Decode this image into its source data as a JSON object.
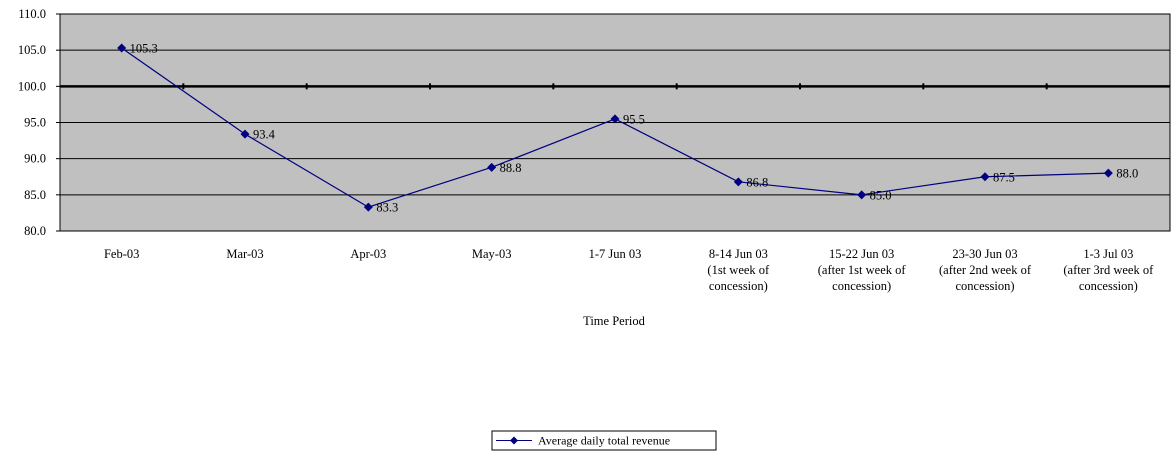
{
  "chart_data": {
    "type": "line",
    "title": "",
    "xlabel": "Time Period",
    "ylabel": "",
    "ylim": [
      80.0,
      110.0
    ],
    "y_ticks": [
      "80.0",
      "85.0",
      "90.0",
      "95.0",
      "100.0",
      "105.0",
      "110.0"
    ],
    "reference_line": 100.0,
    "grid": true,
    "legend_position": "bottom-center",
    "categories": [
      [
        "Feb-03"
      ],
      [
        "Mar-03"
      ],
      [
        "Apr-03"
      ],
      [
        "May-03"
      ],
      [
        "1-7 Jun 03"
      ],
      [
        "8-14 Jun 03",
        "(1st week of",
        "concession)"
      ],
      [
        "15-22 Jun 03",
        "(after 1st week of",
        "concession)"
      ],
      [
        "23-30 Jun 03",
        "(after 2nd week of",
        "concession)"
      ],
      [
        "1-3 Jul 03",
        "(after 3rd week of",
        "concession)"
      ]
    ],
    "series": [
      {
        "name": "Average daily total revenue",
        "values": [
          105.3,
          93.4,
          83.3,
          88.8,
          95.5,
          86.8,
          85.0,
          87.5,
          88.0
        ],
        "labels": [
          "105.3",
          "93.4",
          "83.3",
          "88.8",
          "95.5",
          "86.8",
          "85.0",
          "87.5",
          "88.0"
        ],
        "color": "#000080"
      }
    ],
    "colors": {
      "plot_background": "#c0c0c0",
      "gridline": "#000000",
      "reference_line": "#000000"
    }
  }
}
